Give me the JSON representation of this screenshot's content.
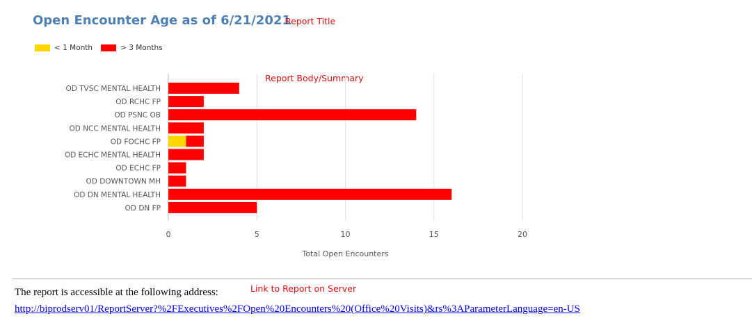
{
  "report": {
    "title": "Open Encounter Age as of 6/21/2021"
  },
  "annotations": {
    "report_title": "Report Title",
    "report_body": "Report Body/Summary",
    "link_note": "Link to Report on Server"
  },
  "legend": [
    {
      "label": "< 1 Month",
      "color": "#ffd700"
    },
    {
      "label": "> 3 Months",
      "color": "#ff0000"
    }
  ],
  "chart_data": {
    "type": "bar",
    "orientation": "horizontal",
    "stacked": true,
    "categories": [
      "OD TVSC MENTAL HEALTH",
      "OD RCHC FP",
      "OD PSNC OB",
      "OD NCC MENTAL HEALTH",
      "OD FOCHC FP",
      "OD ECHC MENTAL HEALTH",
      "OD ECHC FP",
      "OD DOWNTOWN MH",
      "OD DN MENTAL HEALTH",
      "OD DN FP"
    ],
    "series": [
      {
        "name": "< 1 Month",
        "color": "#ffd700",
        "values": [
          0,
          0,
          0,
          0,
          1,
          0,
          0,
          0,
          0,
          0
        ]
      },
      {
        "name": "> 3 Months",
        "color": "#ff0000",
        "values": [
          4,
          2,
          14,
          2,
          1,
          2,
          1,
          1,
          16,
          5
        ]
      }
    ],
    "xlabel": "Total Open Encounters",
    "ylabel": "",
    "xlim": [
      0,
      20
    ],
    "xticks": [
      0,
      5,
      10,
      15,
      20
    ],
    "grid": true,
    "legend_position": "top-left"
  },
  "footer": {
    "text": "The report is accessible at the following address:",
    "link": "http://biprodserv01/ReportServer?%2FExecutives%2FOpen%20Encounters%20(Office%20Visits)&rs%3AParameterLanguage=en-US"
  }
}
